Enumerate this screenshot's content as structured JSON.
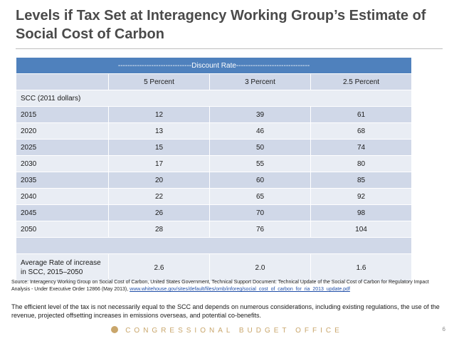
{
  "title": "Levels if Tax Set at Interagency Working Group’s Estimate of Social Cost of Carbon",
  "table": {
    "discount_header": "-------------------------------Discount Rate-------------------------------",
    "columns": [
      "",
      "5 Percent",
      "3 Percent",
      "2.5 Percent"
    ],
    "unit_label": "SCC (2011 dollars)",
    "rows": [
      {
        "year": "2015",
        "v5": "12",
        "v3": "39",
        "v25": "61"
      },
      {
        "year": "2020",
        "v5": "13",
        "v3": "46",
        "v25": "68"
      },
      {
        "year": "2025",
        "v5": "15",
        "v3": "50",
        "v25": "74"
      },
      {
        "year": "2030",
        "v5": "17",
        "v3": "55",
        "v25": "80"
      },
      {
        "year": "2035",
        "v5": "20",
        "v3": "60",
        "v25": "85"
      },
      {
        "year": "2040",
        "v5": "22",
        "v3": "65",
        "v25": "92"
      },
      {
        "year": "2045",
        "v5": "26",
        "v3": "70",
        "v25": "98"
      },
      {
        "year": "2050",
        "v5": "28",
        "v3": "76",
        "v25": "104"
      }
    ],
    "average": {
      "label_line1": "Average Rate of increase",
      "label_line2": "in SCC, 2015–2050",
      "v5": "2.6",
      "v3": "2.0",
      "v25": "1.6"
    }
  },
  "source": {
    "prefix": "Source:",
    "text": "Interagency Working Group on Social Cost of Carbon, United States Government,  Technical Support Document: Technical Update of the Social Cost of Carbon for Regulatory Impact Analysis - Under Executive Order 12866 (May 2013),",
    "link": "www.whitehouse.gov/sites/default/files/omb/inforeg/social_cost_of_carbon_for_ria_2013_update.pdf"
  },
  "note": "The efficient level of the tax is not necessarily equal to the SCC and depends on numerous considerations, including existing regulations, the use of the revenue, projected offsetting increases in emissions overseas, and potential co-benefits.",
  "footer": {
    "agency": "CONGRESSIONAL BUDGET OFFICE",
    "page": "6"
  },
  "colors": {
    "header_blue": "#4f81bd",
    "row_light": "#e9edf4",
    "row_dark": "#d0d8e8",
    "footer_gold": "#c9a66b"
  }
}
